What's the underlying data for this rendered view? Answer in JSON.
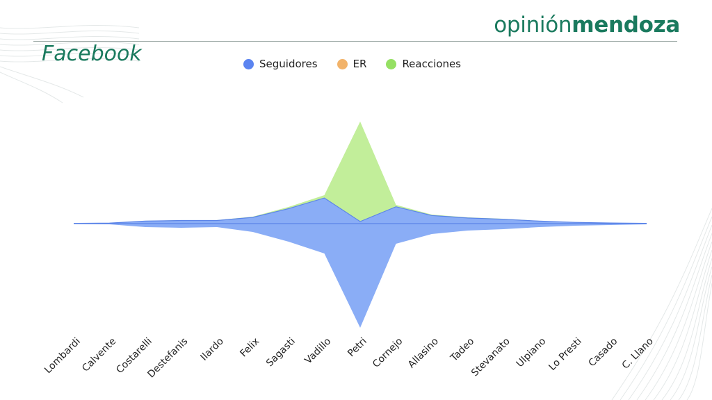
{
  "brand": {
    "prefix": "opinión",
    "suffix": "mendoza"
  },
  "title": "Facebook",
  "colors": {
    "brand": "#1a7a5e",
    "seguidores": "#8aadf6",
    "seguidores_line": "#5b84e8",
    "er": "#f2b36a",
    "reacciones": "#c2ee9a",
    "reacciones_line": "#8fd866",
    "legend_seguidores": "#5b84f0",
    "legend_er": "#f2b36a",
    "legend_reacciones": "#95e063"
  },
  "chart_data": {
    "type": "area",
    "title": "Facebook",
    "xlabel": "",
    "ylabel": "",
    "categories": [
      "Lombardi",
      "Calvente",
      "Costarelli",
      "Destefanis",
      "Ilardo",
      "Felix",
      "Sagasti",
      "Vadillo",
      "Petri",
      "Cornejo",
      "Allasino",
      "Tadeo",
      "Stevanato",
      "Ulpiano",
      "Lo Presti",
      "Casado",
      "C. Llano"
    ],
    "ylim": [
      -150,
      150
    ],
    "series": [
      {
        "name": "Seguidores",
        "values": [
          0.5,
          1,
          5,
          6,
          5,
          12,
          26,
          43,
          150,
          29,
          15,
          10,
          8,
          5,
          3,
          2,
          1
        ]
      },
      {
        "name": "ER",
        "values": [
          0,
          0,
          0,
          0,
          0,
          0,
          0,
          0,
          0,
          0,
          0,
          0,
          0,
          0,
          0,
          0,
          0
        ]
      },
      {
        "name": "Reacciones",
        "values": [
          0.5,
          0.8,
          4,
          5,
          5,
          10,
          24,
          41,
          147,
          27,
          13,
          9,
          7,
          4,
          2,
          1,
          0.5
        ]
      }
    ],
    "axis_center_value": 0,
    "grid": false,
    "legend_position": "top-center"
  },
  "legend": [
    {
      "label": "Seguidores"
    },
    {
      "label": "ER"
    },
    {
      "label": "Reacciones"
    }
  ]
}
